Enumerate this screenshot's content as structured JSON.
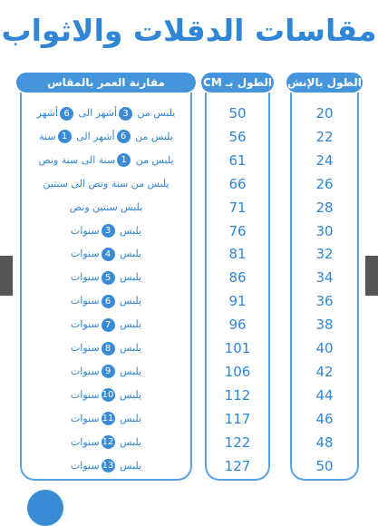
{
  "title": "مقاسات الدقلات والاثواب",
  "table": {
    "headers": {
      "inch": "الطول بالإنش",
      "cm": "الطول بـ CM",
      "age": "مقارنة العمر بالمقاس"
    },
    "rows": [
      {
        "inch": 20,
        "cm": 50,
        "age": [
          "يلبس من",
          "3",
          "أشهر الى",
          "6",
          "أشهر"
        ]
      },
      {
        "inch": 22,
        "cm": 56,
        "age": [
          "يلبس من",
          "6",
          "أشهر الى",
          "1",
          "سنة"
        ]
      },
      {
        "inch": 24,
        "cm": 61,
        "age": [
          "يلبس من",
          "1",
          "سنة الى سنة ونص"
        ]
      },
      {
        "inch": 26,
        "cm": 66,
        "age": [
          "يلبس من سنة ونص الى سنتين"
        ]
      },
      {
        "inch": 28,
        "cm": 71,
        "age": [
          "يلبس سنتين ونص"
        ]
      },
      {
        "inch": 30,
        "cm": 76,
        "age": [
          "يلبس",
          "3",
          "سنوات"
        ]
      },
      {
        "inch": 32,
        "cm": 81,
        "age": [
          "يلبس",
          "4",
          "سنوات"
        ]
      },
      {
        "inch": 34,
        "cm": 86,
        "age": [
          "يلبس",
          "5",
          "سنوات"
        ]
      },
      {
        "inch": 36,
        "cm": 91,
        "age": [
          "يلبس",
          "6",
          "سنوات"
        ]
      },
      {
        "inch": 38,
        "cm": 96,
        "age": [
          "يلبس",
          "7",
          "سنوات"
        ]
      },
      {
        "inch": 40,
        "cm": 101,
        "age": [
          "يلبس",
          "8",
          "سنوات"
        ]
      },
      {
        "inch": 42,
        "cm": 106,
        "age": [
          "يلبس",
          "9",
          "سنوات"
        ]
      },
      {
        "inch": 44,
        "cm": 112,
        "age": [
          "يلبس",
          "10",
          "سنوات"
        ]
      },
      {
        "inch": 46,
        "cm": 117,
        "age": [
          "يلبس",
          "11",
          "سنوات"
        ]
      },
      {
        "inch": 48,
        "cm": 122,
        "age": [
          "يلبس",
          "12",
          "سنوات"
        ]
      },
      {
        "inch": 50,
        "cm": 127,
        "age": [
          "يلبس",
          "13",
          "سنوات"
        ]
      }
    ]
  }
}
